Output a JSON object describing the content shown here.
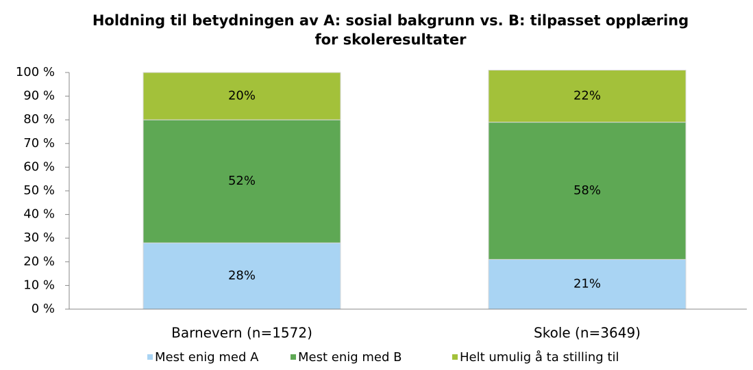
{
  "chart_data": {
    "type": "stacked_bar",
    "title": "Holdning til betydningen av A: sosial bakgrunn vs. B: tilpasset opplæring for skoleresultater",
    "categories": [
      "Barnevern (n=1572)",
      "Skole (n=3649)"
    ],
    "series": [
      {
        "name": "Mest enig med A",
        "color": "#a9d4f3",
        "values": [
          28,
          21
        ],
        "value_labels": [
          "28%",
          "21%"
        ]
      },
      {
        "name": "Mest enig med B",
        "color": "#5ea854",
        "values": [
          52,
          58
        ],
        "value_labels": [
          "52%",
          "58%"
        ]
      },
      {
        "name": "Helt umulig å ta stilling til",
        "color": "#a3c13a",
        "values": [
          20,
          22
        ],
        "value_labels": [
          "20%",
          "22%"
        ]
      }
    ],
    "ylim": [
      0,
      100
    ],
    "yticks": [
      {
        "value": 0,
        "label": "0 %"
      },
      {
        "value": 10,
        "label": "10 %"
      },
      {
        "value": 20,
        "label": "20 %"
      },
      {
        "value": 30,
        "label": "30 %"
      },
      {
        "value": 40,
        "label": "40 %"
      },
      {
        "value": 50,
        "label": "50 %"
      },
      {
        "value": 60,
        "label": "60 %"
      },
      {
        "value": 70,
        "label": "70 %"
      },
      {
        "value": 80,
        "label": "80 %"
      },
      {
        "value": 90,
        "label": "90 %"
      },
      {
        "value": 100,
        "label": "100 %"
      }
    ],
    "grid": false,
    "legend": "bottom"
  }
}
